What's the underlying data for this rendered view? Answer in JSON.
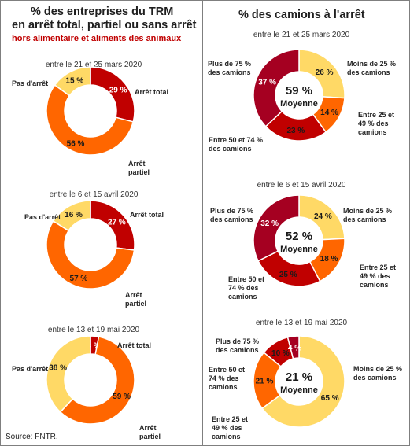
{
  "left_title_1": "% des entreprises du TRM",
  "left_title_2": "en arrêt total, partiel  ou sans arrêt",
  "left_subtitle": "hors alimentaire et aliments des animaux",
  "right_title": "% des camions à l'arrêt",
  "source": "Source: FNTR.",
  "average_label": "Moyenne",
  "colors": {
    "arret_total": "#c00000",
    "arret_partiel": "#ff6600",
    "pas_arret": "#ffd966",
    "moins25": "#ffd966",
    "p25_49": "#ff6600",
    "p50_74": "#c00000",
    "plus75": "#a50021"
  },
  "chart_data": [
    {
      "type": "pie",
      "title": "entre le 21 et 25 mars 2020",
      "slices": [
        {
          "label": "Arrêt total",
          "value": 29,
          "text": "29 %"
        },
        {
          "label": "Arrêt partiel",
          "value": 56,
          "text": "56 %"
        },
        {
          "label": "Pas d'arrêt",
          "value": 15,
          "text": "15 %"
        }
      ]
    },
    {
      "type": "pie",
      "title": "entre le 6 et 15 avril 2020",
      "slices": [
        {
          "label": "Arrêt total",
          "value": 27,
          "text": "27 %"
        },
        {
          "label": "Arrêt partiel",
          "value": 57,
          "text": "57 %"
        },
        {
          "label": "Pas d'arrêt",
          "value": 16,
          "text": "16 %"
        }
      ]
    },
    {
      "type": "pie",
      "title": "entre le 13 et 19 mai 2020",
      "slices": [
        {
          "label": "Arrêt total",
          "value": 3,
          "text": "3 %"
        },
        {
          "label": "Arrêt partiel",
          "value": 59,
          "text": "59 %"
        },
        {
          "label": "Pas d'arrêt",
          "value": 38,
          "text": "38 %"
        }
      ]
    },
    {
      "type": "pie",
      "title": "entre le 21 et 25 mars 2020",
      "average": "59 %",
      "slices": [
        {
          "label": "Moins de 25 % des camions",
          "value": 26,
          "text": "26 %"
        },
        {
          "label": "Entre 25 et 49 % des camions",
          "value": 14,
          "text": "14 %"
        },
        {
          "label": "Entre 50 et 74 % des camions",
          "value": 23,
          "text": "23 %"
        },
        {
          "label": "Plus de 75 % des camions",
          "value": 37,
          "text": "37 %"
        }
      ]
    },
    {
      "type": "pie",
      "title": "entre le 6 et 15 avril 2020",
      "average": "52 %",
      "slices": [
        {
          "label": "Moins de 25 % des camions",
          "value": 24,
          "text": "24 %"
        },
        {
          "label": "Entre 25 et 49 % des camions",
          "value": 18,
          "text": "18 %"
        },
        {
          "label": "Entre 50 et 74 % des camions",
          "value": 25,
          "text": "25 %"
        },
        {
          "label": "Plus de 75 % des camions",
          "value": 32,
          "text": "32 %"
        }
      ]
    },
    {
      "type": "pie",
      "title": "entre le 13 et 19 mai 2020",
      "average": "21 %",
      "slices": [
        {
          "label": "Moins de 25 % des camions",
          "value": 65,
          "text": "65 %"
        },
        {
          "label": "Entre 25 et 49 % des camions",
          "value": 21,
          "text": "21 %"
        },
        {
          "label": "Entre 50 et 74 % des camions",
          "value": 10,
          "text": "10 %"
        },
        {
          "label": "Plus de 75 % des camions",
          "value": 4,
          "text": "4 %"
        }
      ]
    }
  ]
}
